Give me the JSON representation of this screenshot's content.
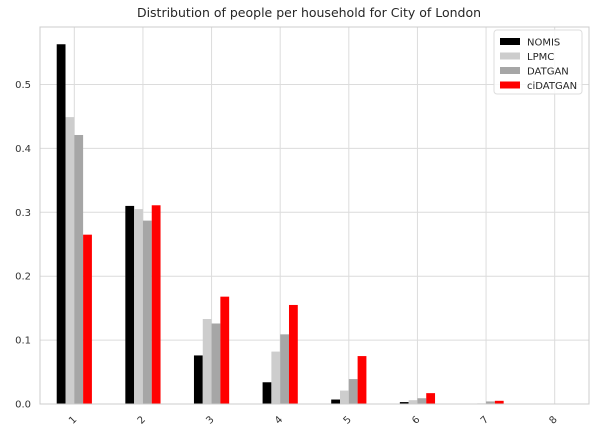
{
  "chart_data": {
    "type": "bar",
    "title": "Distribution of people per household for City of London",
    "xlabel": "",
    "ylabel": "",
    "categories": [
      "1",
      "2",
      "3",
      "4",
      "5",
      "6",
      "7",
      "8"
    ],
    "ylim": [
      0,
      0.59
    ],
    "yticks": [
      "0.0",
      "0.1",
      "0.2",
      "0.3",
      "0.4",
      "0.5"
    ],
    "grid": true,
    "legend_position": "top-right",
    "series": [
      {
        "name": "NOMIS",
        "color": "#000000",
        "values": [
          0.563,
          0.31,
          0.076,
          0.034,
          0.007,
          0.003,
          0.0,
          0.0
        ]
      },
      {
        "name": "LPMC",
        "color": "#cdcdcd",
        "values": [
          0.449,
          0.305,
          0.133,
          0.082,
          0.021,
          0.006,
          0.001,
          0.0
        ]
      },
      {
        "name": "DATGAN",
        "color": "#a6a6a6",
        "values": [
          0.421,
          0.287,
          0.126,
          0.109,
          0.039,
          0.009,
          0.004,
          0.0
        ]
      },
      {
        "name": "ciDATGAN",
        "color": "#ff0000",
        "values": [
          0.265,
          0.311,
          0.168,
          0.155,
          0.075,
          0.017,
          0.005,
          0.0
        ]
      }
    ]
  }
}
